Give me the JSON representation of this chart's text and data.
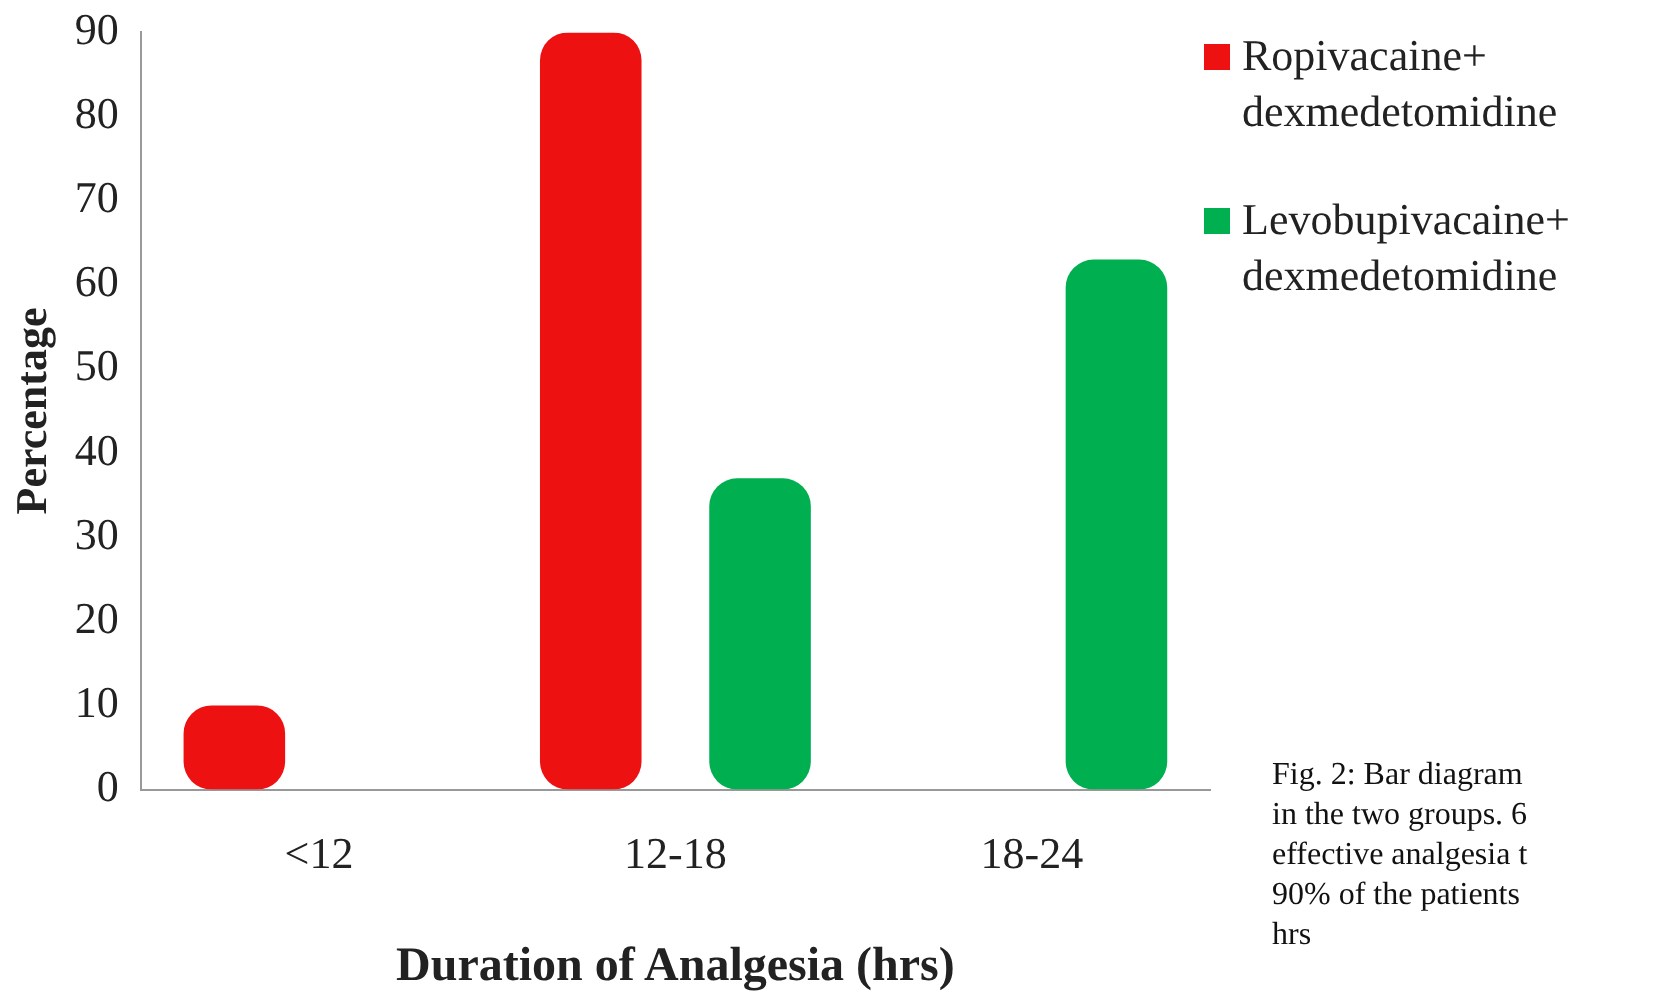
{
  "chart_data": {
    "type": "bar",
    "xlabel": "Duration of Analgesia (hrs)",
    "ylabel": "Percentage",
    "categories": [
      "<12",
      "12-18",
      "18-24"
    ],
    "series": [
      {
        "name": "Ropivacaine+ dexmedetomidine",
        "color": "#ee1111",
        "values": [
          10,
          90,
          0
        ]
      },
      {
        "name": "Levobupivacaine+ dexmedetomidine",
        "color": "#00b050",
        "values": [
          0,
          37,
          63
        ]
      }
    ],
    "ylim": [
      0,
      90
    ],
    "yticks": [
      0,
      10,
      20,
      30,
      40,
      50,
      60,
      70,
      80,
      90
    ],
    "grid": false,
    "legend": "right",
    "annotations": [
      "Fig. 2: Bar diagram",
      "in the two groups. 6",
      "effective analgesia t",
      "90% of the patients",
      "hrs"
    ]
  }
}
